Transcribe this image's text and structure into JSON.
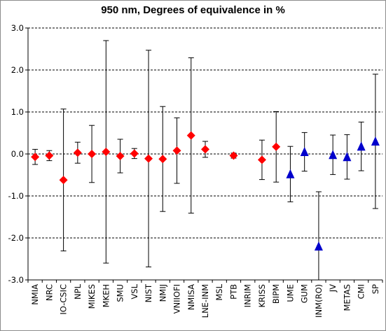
{
  "chart_data": {
    "type": "scatter",
    "title": "950 nm, Degrees of equivalence in %",
    "xlabel": "",
    "ylabel": "",
    "ylim": [
      -3.0,
      3.0
    ],
    "yticks": [
      "3.0",
      "2.0",
      "1.0",
      "0.0",
      "-1.0",
      "-2.0",
      "-3.0"
    ],
    "ytick_values": [
      3,
      2,
      1,
      0,
      -1,
      -2,
      -3
    ],
    "gridlines": "dashed horizontal at major ticks",
    "legend": "none",
    "marker_colors": {
      "diamond": "#ff0000",
      "triangle": "#0000cc"
    },
    "categories": [
      "NMIA",
      "NRC",
      "IO-CSIC",
      "NPL",
      "MIKES",
      "MKEH",
      "SMU",
      "VSL",
      "NIST",
      "NMIJ",
      "VNIIOFI",
      "NMISA",
      "LNE-INM",
      "MSL",
      "PTB",
      "INRIM",
      "KRISS",
      "BIPM",
      "UME",
      "GUM",
      "INM(RO)",
      "JV",
      "METAS",
      "CMI",
      "SP"
    ],
    "series": [
      {
        "marker": "diamond",
        "points": [
          {
            "label": "NMIA",
            "value": -0.07,
            "uncertainty": 0.18
          },
          {
            "label": "NRC",
            "value": -0.04,
            "uncertainty": 0.12
          },
          {
            "label": "IO-CSIC",
            "value": -0.62,
            "uncertainty": 1.69
          },
          {
            "label": "NPL",
            "value": 0.03,
            "uncertainty": 0.25
          },
          {
            "label": "MIKES",
            "value": 0.0,
            "uncertainty": 0.68
          },
          {
            "label": "MKEH",
            "value": 0.05,
            "uncertainty": 2.65
          },
          {
            "label": "SMU",
            "value": -0.05,
            "uncertainty": 0.4
          },
          {
            "label": "VSL",
            "value": 0.01,
            "uncertainty": 0.12
          },
          {
            "label": "NIST",
            "value": -0.11,
            "uncertainty": 2.58
          },
          {
            "label": "NMIJ",
            "value": -0.12,
            "uncertainty": 1.25
          },
          {
            "label": "VNIIOFI",
            "value": 0.08,
            "uncertainty": 0.78
          },
          {
            "label": "NMISA",
            "value": 0.44,
            "uncertainty": 1.85
          },
          {
            "label": "LNE-INM",
            "value": 0.11,
            "uncertainty": 0.19
          },
          {
            "label": "PTB",
            "value": -0.04,
            "uncertainty": 0.06
          },
          {
            "label": "KRISS",
            "value": -0.14,
            "uncertainty": 0.47
          },
          {
            "label": "BIPM",
            "value": 0.17,
            "uncertainty": 0.84
          }
        ]
      },
      {
        "marker": "triangle",
        "points": [
          {
            "label": "UME",
            "value": -0.48,
            "uncertainty": 0.66
          },
          {
            "label": "GUM",
            "value": 0.05,
            "uncertainty": 0.46
          },
          {
            "label": "INM(RO)",
            "value": -2.2,
            "uncertainty": 1.3
          },
          {
            "label": "JV",
            "value": -0.02,
            "uncertainty": 0.47
          },
          {
            "label": "METAS",
            "value": -0.07,
            "uncertainty": 0.53
          },
          {
            "label": "CMI",
            "value": 0.18,
            "uncertainty": 0.58
          },
          {
            "label": "SP",
            "value": 0.3,
            "uncertainty": 1.6
          }
        ]
      }
    ]
  }
}
